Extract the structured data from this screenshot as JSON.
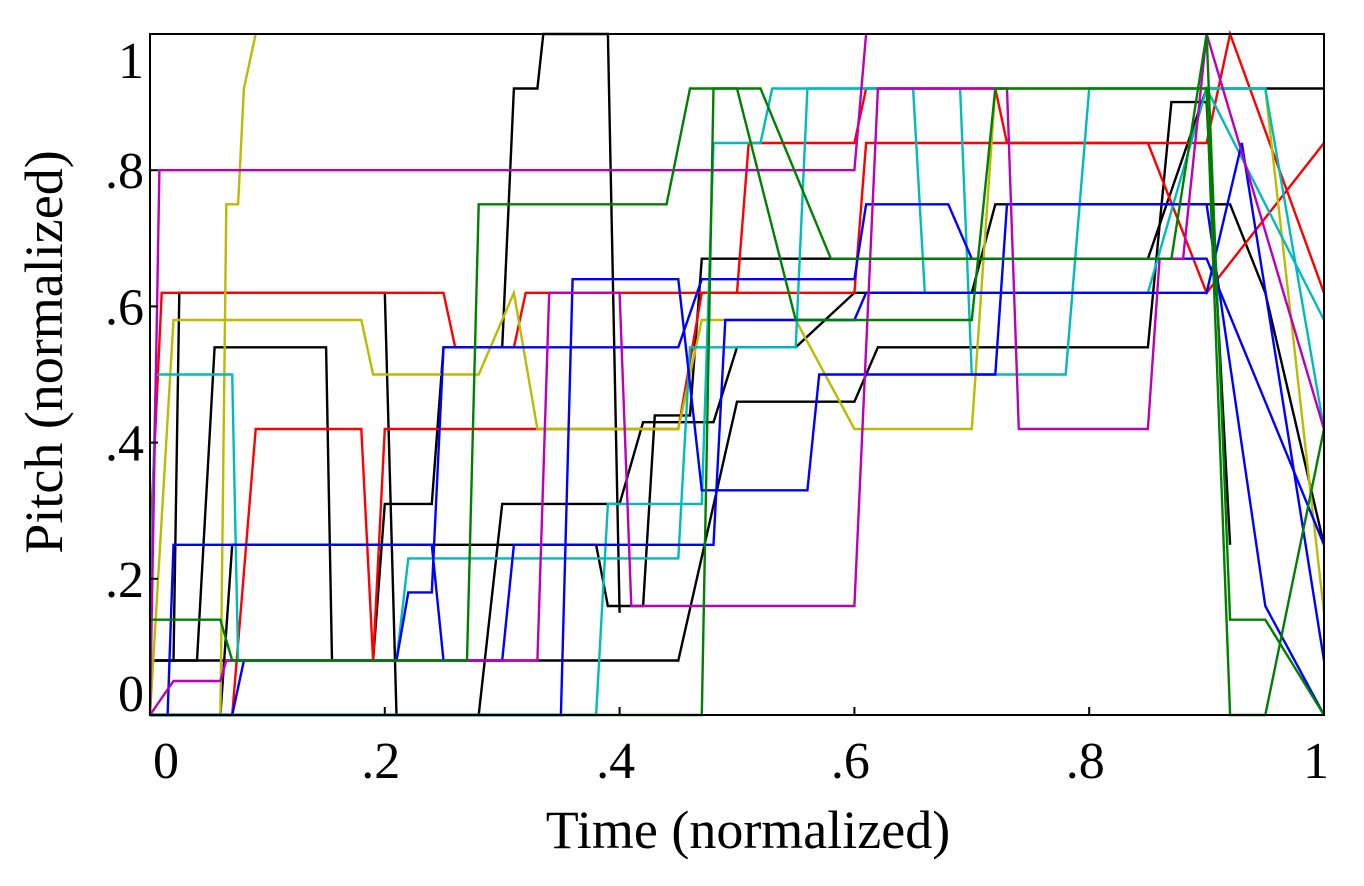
{
  "chart_data": {
    "type": "line",
    "title": "",
    "xlabel": "Time (normalized)",
    "ylabel": "Pitch (normalized)",
    "xlim": [
      0,
      1
    ],
    "ylim": [
      0,
      1
    ],
    "grid": false,
    "legend": "none",
    "xticks": [
      {
        "value": 0,
        "label": "0"
      },
      {
        "value": 0.2,
        "label": ".2"
      },
      {
        "value": 0.4,
        "label": ".4"
      },
      {
        "value": 0.6,
        "label": ".6"
      },
      {
        "value": 0.8,
        "label": ".8"
      },
      {
        "value": 1,
        "label": "1"
      }
    ],
    "yticks": [
      {
        "value": 0,
        "label": "0"
      },
      {
        "value": 0.2,
        "label": ".2"
      },
      {
        "value": 0.4,
        "label": ".4"
      },
      {
        "value": 0.6,
        "label": ".6"
      },
      {
        "value": 0.8,
        "label": ".8"
      },
      {
        "value": 1,
        "label": "1"
      }
    ],
    "series": [
      {
        "color": "#000000",
        "x": [
          0,
          0.04,
          0.055,
          0.15,
          0.155,
          0.19,
          0.2,
          0.24,
          0.25,
          0.3,
          0.31,
          0.33,
          0.335,
          0.39,
          0.4
        ],
        "y": [
          0.08,
          0.08,
          0.54,
          0.54,
          0.08,
          0.08,
          0.31,
          0.31,
          0.54,
          0.54,
          0.92,
          0.92,
          1,
          1,
          0.15
        ]
      },
      {
        "color": "#000000",
        "x": [
          0,
          0.02,
          0.025,
          0.2,
          0.21,
          0.28,
          0.3,
          0.4,
          0.42,
          0.48,
          0.5,
          0.55,
          0.6,
          0.7,
          0.72,
          0.92,
          0.95,
          1
        ],
        "y": [
          0.08,
          0.08,
          0.62,
          0.62,
          0,
          0,
          0.31,
          0.31,
          0.43,
          0.43,
          0.54,
          0.54,
          0.62,
          0.62,
          0.75,
          0.75,
          0.62,
          0.25
        ]
      },
      {
        "color": "#000000",
        "x": [
          0,
          0.06,
          0.07,
          0.3,
          0.38,
          0.39,
          0.42,
          0.43,
          0.46,
          0.47,
          0.52,
          0.6,
          0.85,
          0.9,
          1
        ],
        "y": [
          0,
          0,
          0.25,
          0.25,
          0.25,
          0.16,
          0.16,
          0.44,
          0.44,
          0.67,
          0.67,
          0.67,
          0.67,
          0.92,
          0.92
        ]
      },
      {
        "color": "#000000",
        "x": [
          0,
          0.45,
          0.5,
          0.55,
          0.6,
          0.62,
          0.85,
          0.87,
          0.9,
          0.92
        ],
        "y": [
          0.08,
          0.08,
          0.46,
          0.46,
          0.46,
          0.54,
          0.54,
          0.9,
          0.9,
          0.25
        ]
      },
      {
        "color": "#ff0000",
        "x": [
          0,
          0.01,
          0.25,
          0.26,
          0.31,
          0.32,
          0.5,
          0.51,
          0.6,
          0.61,
          0.72,
          0.73,
          0.9,
          0.92,
          1
        ],
        "y": [
          0.25,
          0.62,
          0.62,
          0.54,
          0.54,
          0.62,
          0.62,
          0.84,
          0.84,
          0.92,
          0.92,
          0.84,
          0.84,
          1,
          0.62
        ]
      },
      {
        "color": "#ff0000",
        "x": [
          0,
          0.07,
          0.09,
          0.1,
          0.18,
          0.19,
          0.2,
          0.35,
          0.36,
          0.45,
          0.47,
          0.6,
          0.61,
          0.85,
          0.9,
          1
        ],
        "y": [
          0,
          0,
          0.42,
          0.42,
          0.42,
          0.08,
          0.42,
          0.42,
          0.42,
          0.42,
          0.62,
          0.62,
          0.84,
          0.84,
          0.62,
          0.84
        ]
      },
      {
        "color": "#bbbb00",
        "x": [
          0,
          0.06,
          0.065,
          0.075,
          0.08,
          0.09
        ],
        "y": [
          0,
          0,
          0.75,
          0.75,
          0.92,
          1
        ]
      },
      {
        "color": "#bbbb00",
        "x": [
          0,
          0.02,
          0.18,
          0.19,
          0.28,
          0.31,
          0.33,
          0.45,
          0.47,
          0.55,
          0.6,
          0.7,
          0.72,
          0.95,
          1
        ],
        "y": [
          0,
          0.58,
          0.58,
          0.5,
          0.5,
          0.62,
          0.42,
          0.42,
          0.58,
          0.58,
          0.42,
          0.42,
          0.92,
          0.92,
          0.15
        ]
      },
      {
        "color": "#00bbbb",
        "x": [
          0,
          0.005,
          0.07,
          0.075,
          0.21,
          0.22,
          0.29,
          0.3,
          0.45,
          0.46,
          0.55,
          0.56,
          0.69,
          0.7,
          0.78,
          0.8,
          0.95,
          1
        ],
        "y": [
          0.15,
          0.5,
          0.5,
          0.08,
          0.08,
          0.23,
          0.23,
          0.23,
          0.23,
          0.54,
          0.54,
          0.92,
          0.92,
          0.5,
          0.5,
          0.92,
          0.92,
          0.42
        ]
      },
      {
        "color": "#00bbbb",
        "x": [
          0,
          0.38,
          0.39,
          0.47,
          0.48,
          0.52,
          0.53,
          0.65,
          0.66,
          0.85,
          0.9,
          1
        ],
        "y": [
          0,
          0,
          0.31,
          0.31,
          0.84,
          0.84,
          0.92,
          0.92,
          0.62,
          0.62,
          0.92,
          0.58
        ]
      },
      {
        "color": "#0000ff",
        "x": [
          0,
          0.015,
          0.02,
          0.24,
          0.25,
          0.3,
          0.31,
          0.48,
          0.49,
          0.6,
          0.61,
          0.9,
          0.93,
          1
        ],
        "y": [
          0,
          0,
          0.25,
          0.25,
          0.08,
          0.08,
          0.25,
          0.25,
          0.58,
          0.58,
          0.62,
          0.62,
          0.84,
          0.08
        ]
      },
      {
        "color": "#0000ff",
        "x": [
          0,
          0.07,
          0.08,
          0.21,
          0.22,
          0.24,
          0.25,
          0.45,
          0.47,
          0.6,
          0.61,
          0.68,
          0.7,
          0.9,
          1
        ],
        "y": [
          0,
          0,
          0.08,
          0.08,
          0.18,
          0.18,
          0.54,
          0.54,
          0.64,
          0.64,
          0.75,
          0.75,
          0.67,
          0.67,
          0.25
        ]
      },
      {
        "color": "#0000ff",
        "x": [
          0,
          0.35,
          0.36,
          0.45,
          0.47,
          0.56,
          0.57,
          0.72,
          0.73,
          0.9,
          0.95,
          1
        ],
        "y": [
          0,
          0,
          0.64,
          0.64,
          0.33,
          0.33,
          0.5,
          0.5,
          0.75,
          0.75,
          0.16,
          0
        ]
      },
      {
        "color": "#bb00bb",
        "x": [
          0,
          0.008,
          0.012,
          0.6,
          0.61
        ],
        "y": [
          0,
          0.8,
          0.8,
          0.8,
          1
        ]
      },
      {
        "color": "#bb00bb",
        "x": [
          0,
          0.02,
          0.06,
          0.065,
          0.33,
          0.34,
          0.4,
          0.41,
          0.6,
          0.62,
          0.73,
          0.74,
          0.85,
          0.86,
          0.88,
          0.9,
          1
        ],
        "y": [
          0,
          0.05,
          0.05,
          0.08,
          0.08,
          0.62,
          0.62,
          0.16,
          0.16,
          0.92,
          0.92,
          0.42,
          0.42,
          0.67,
          0.67,
          1,
          0.42
        ]
      },
      {
        "color": "#008000",
        "x": [
          0,
          0.06,
          0.07,
          0.27,
          0.28,
          0.44,
          0.46,
          0.5,
          0.55,
          0.7,
          0.72,
          0.9,
          0.92,
          0.95,
          1
        ],
        "y": [
          0.14,
          0.14,
          0.08,
          0.08,
          0.75,
          0.75,
          0.92,
          0.92,
          0.58,
          0.58,
          0.92,
          0.92,
          0,
          0,
          0.42
        ]
      },
      {
        "color": "#008000",
        "x": [
          0,
          0.47,
          0.48,
          0.52,
          0.58,
          0.72,
          0.87,
          0.9,
          0.92,
          0.95,
          1
        ],
        "y": [
          0,
          0,
          0.92,
          0.92,
          0.67,
          0.67,
          0.67,
          1,
          0.14,
          0.14,
          0
        ]
      }
    ]
  }
}
